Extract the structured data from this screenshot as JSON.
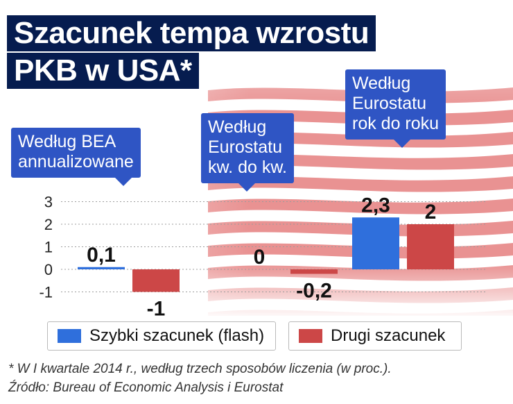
{
  "title": {
    "line1": "Szacunek tempa wzrostu",
    "line2": "PKB w USA*"
  },
  "callouts": [
    {
      "lines": [
        "Według BEA",
        "annualizowane"
      ]
    },
    {
      "lines": [
        "Według",
        "Eurostatu",
        "kw. do kw."
      ]
    },
    {
      "lines": [
        "Według",
        "Eurostatu",
        "rok do roku"
      ]
    }
  ],
  "colors": {
    "title_bg": "#061c4f",
    "callout_bg": "#2f55c4",
    "flash": "#2f6fdc",
    "second": "#cc4747"
  },
  "chart_data": {
    "type": "bar",
    "categories": [
      "Według BEA annualizowane",
      "Według Eurostatu kw. do kw.",
      "Według Eurostatu rok do roku"
    ],
    "series": [
      {
        "name": "Szybki szacunek (flash)",
        "color": "#2f6fdc",
        "values": [
          0.1,
          0,
          2.3
        ],
        "labels": [
          "0,1",
          "0",
          "2,3"
        ]
      },
      {
        "name": "Drugi szacunek",
        "color": "#cc4747",
        "values": [
          -1,
          -0.2,
          2
        ],
        "labels": [
          "-1",
          "-0,2",
          "2"
        ]
      }
    ],
    "y_ticks": [
      "3",
      "2",
      "1",
      "0",
      "-1"
    ],
    "ylim": [
      -1,
      3
    ],
    "grid": true,
    "legend_position": "bottom"
  },
  "footnote": {
    "line1": "* W I kwartale 2014 r., według trzech sposobów liczenia (w proc.).",
    "line2": "Źródło: Bureau of Economic Analysis i Eurostat"
  }
}
